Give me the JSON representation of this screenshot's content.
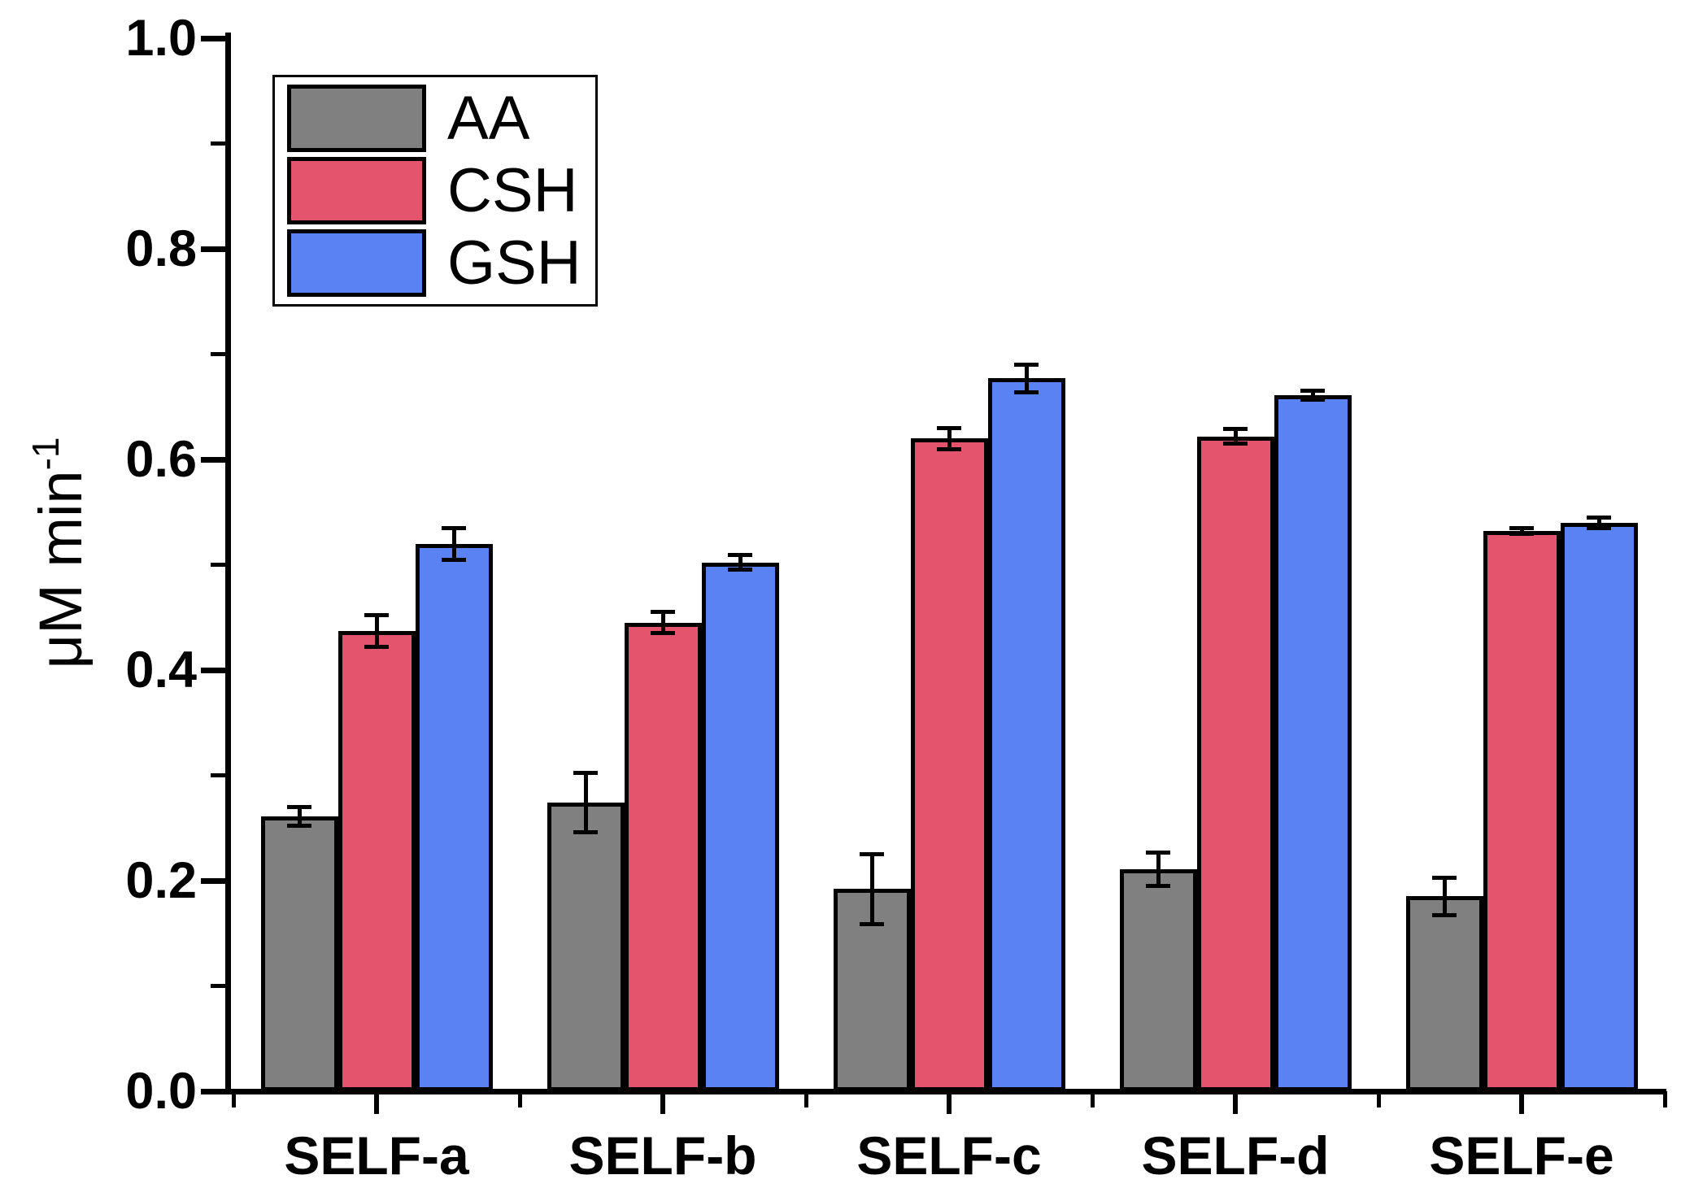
{
  "chart_data": {
    "type": "bar",
    "title": "",
    "xlabel": "",
    "ylabel": "μM min⁻¹",
    "ylabel_main": "μM min",
    "ylabel_sup": "-1",
    "categories": [
      "SELF-a",
      "SELF-b",
      "SELF-c",
      "SELF-d",
      "SELF-e"
    ],
    "series": [
      {
        "name": "AA",
        "color": "#808080",
        "values": [
          0.261,
          0.274,
          0.192,
          0.211,
          0.185
        ],
        "errors": [
          0.009,
          0.028,
          0.033,
          0.016,
          0.018
        ]
      },
      {
        "name": "CSH",
        "color": "#E4546C",
        "values": [
          0.437,
          0.445,
          0.62,
          0.622,
          0.532
        ],
        "errors": [
          0.015,
          0.01,
          0.01,
          0.007,
          0.003
        ]
      },
      {
        "name": "GSH",
        "color": "#5B82F2",
        "values": [
          0.52,
          0.502,
          0.677,
          0.661,
          0.54
        ],
        "errors": [
          0.015,
          0.007,
          0.013,
          0.004,
          0.005
        ]
      }
    ],
    "ylim": [
      0.0,
      1.0
    ],
    "y_major_ticks": [
      0.0,
      0.2,
      0.4,
      0.6,
      0.8,
      1.0
    ],
    "y_tick_labels": [
      "0.0",
      "0.2",
      "0.4",
      "0.6",
      "0.8",
      "1.0"
    ],
    "y_minor_ticks": [
      0.1,
      0.3,
      0.5,
      0.7,
      0.9
    ],
    "grid": false,
    "legend_position": "top-left",
    "error_bars": true,
    "bar_edge_color": "#000000",
    "background_color": "#ffffff"
  }
}
